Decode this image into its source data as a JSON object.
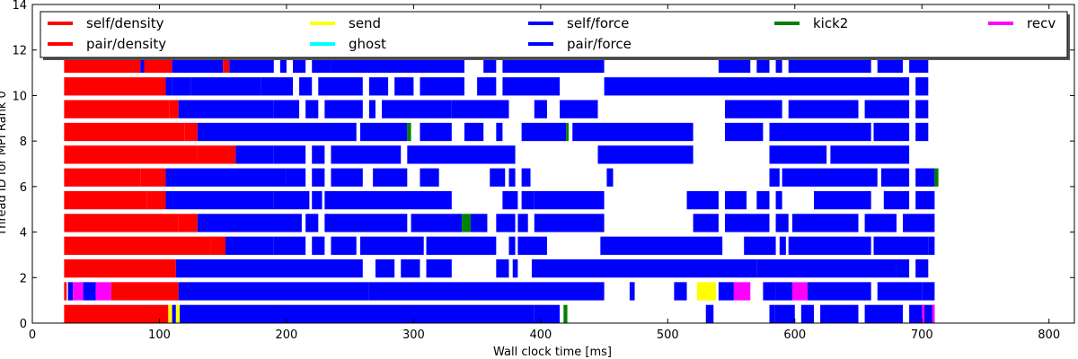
{
  "chart_data": {
    "type": "gantt",
    "xlabel": "Wall clock time [ms]",
    "ylabel": "Thread ID for MPI Rank 0",
    "xlim": [
      0,
      820
    ],
    "ylim": [
      0,
      14
    ],
    "xticks": [
      0,
      100,
      200,
      300,
      400,
      500,
      600,
      700,
      800
    ],
    "yticks": [
      0,
      2,
      4,
      6,
      8,
      10,
      12,
      14
    ],
    "legend_position": "top",
    "legend": [
      {
        "name": "self/density",
        "color": "#ff0000"
      },
      {
        "name": "pair/density",
        "color": "#ff0000"
      },
      {
        "name": "send",
        "color": "#ffff00"
      },
      {
        "name": "ghost",
        "color": "#00ffff"
      },
      {
        "name": "self/force",
        "color": "#0000ff"
      },
      {
        "name": "pair/force",
        "color": "#0000ff"
      },
      {
        "name": "kick2",
        "color": "#008000"
      },
      {
        "name": "recv",
        "color": "#ff00ff"
      }
    ],
    "series_colors": {
      "density": "#ff0000",
      "send": "#ffff00",
      "ghost": "#00ffff",
      "force": "#0000ff",
      "kick2": "#008000",
      "recv": "#ff00ff"
    },
    "threads": [
      {
        "id": 0,
        "tasks": [
          [
            25,
            107,
            "density"
          ],
          [
            107,
            110,
            "send"
          ],
          [
            110,
            113,
            "force"
          ],
          [
            113,
            116,
            "send"
          ],
          [
            116,
            395,
            "force"
          ],
          [
            395,
            415,
            "force"
          ],
          [
            418,
            421,
            "kick2"
          ],
          [
            530,
            536,
            "force"
          ],
          [
            580,
            584,
            "force"
          ],
          [
            584,
            600,
            "force"
          ],
          [
            605,
            615,
            "force"
          ],
          [
            620,
            650,
            "force"
          ],
          [
            655,
            685,
            "force"
          ],
          [
            690,
            710,
            "force"
          ],
          [
            700,
            702,
            "recv"
          ],
          [
            708,
            710,
            "recv"
          ]
        ]
      },
      {
        "id": 1,
        "tasks": [
          [
            25,
            27,
            "density"
          ],
          [
            28,
            32,
            "force"
          ],
          [
            32,
            40,
            "recv"
          ],
          [
            40,
            50,
            "force"
          ],
          [
            50,
            62,
            "recv"
          ],
          [
            62,
            115,
            "density"
          ],
          [
            115,
            265,
            "force"
          ],
          [
            265,
            340,
            "force"
          ],
          [
            340,
            450,
            "force"
          ],
          [
            470,
            474,
            "force"
          ],
          [
            505,
            515,
            "force"
          ],
          [
            523,
            538,
            "send"
          ],
          [
            540,
            552,
            "force"
          ],
          [
            552,
            565,
            "recv"
          ],
          [
            575,
            585,
            "force"
          ],
          [
            585,
            598,
            "force"
          ],
          [
            598,
            610,
            "recv"
          ],
          [
            610,
            660,
            "force"
          ],
          [
            665,
            700,
            "force"
          ],
          [
            700,
            710,
            "force"
          ]
        ]
      },
      {
        "id": 2,
        "tasks": [
          [
            25,
            113,
            "density"
          ],
          [
            113,
            260,
            "force"
          ],
          [
            270,
            285,
            "force"
          ],
          [
            290,
            305,
            "force"
          ],
          [
            310,
            330,
            "force"
          ],
          [
            365,
            375,
            "force"
          ],
          [
            378,
            382,
            "force"
          ],
          [
            393,
            570,
            "force"
          ],
          [
            570,
            680,
            "force"
          ],
          [
            680,
            690,
            "force"
          ],
          [
            695,
            705,
            "force"
          ]
        ]
      },
      {
        "id": 3,
        "tasks": [
          [
            25,
            140,
            "density"
          ],
          [
            140,
            152,
            "density"
          ],
          [
            152,
            190,
            "force"
          ],
          [
            190,
            215,
            "force"
          ],
          [
            220,
            230,
            "force"
          ],
          [
            235,
            255,
            "force"
          ],
          [
            258,
            308,
            "force"
          ],
          [
            310,
            365,
            "force"
          ],
          [
            375,
            380,
            "force"
          ],
          [
            382,
            405,
            "force"
          ],
          [
            447,
            543,
            "force"
          ],
          [
            560,
            585,
            "force"
          ],
          [
            588,
            593,
            "force"
          ],
          [
            595,
            660,
            "force"
          ],
          [
            662,
            705,
            "force"
          ],
          [
            705,
            710,
            "force"
          ]
        ]
      },
      {
        "id": 4,
        "tasks": [
          [
            25,
            115,
            "density"
          ],
          [
            115,
            130,
            "density"
          ],
          [
            130,
            212,
            "force"
          ],
          [
            215,
            225,
            "force"
          ],
          [
            230,
            295,
            "force"
          ],
          [
            298,
            338,
            "force"
          ],
          [
            338,
            345,
            "kick2"
          ],
          [
            345,
            358,
            "force"
          ],
          [
            365,
            380,
            "force"
          ],
          [
            382,
            390,
            "force"
          ],
          [
            395,
            450,
            "force"
          ],
          [
            520,
            540,
            "force"
          ],
          [
            545,
            580,
            "force"
          ],
          [
            585,
            595,
            "force"
          ],
          [
            598,
            650,
            "force"
          ],
          [
            655,
            680,
            "force"
          ],
          [
            685,
            710,
            "force"
          ]
        ]
      },
      {
        "id": 5,
        "tasks": [
          [
            25,
            90,
            "density"
          ],
          [
            90,
            105,
            "density"
          ],
          [
            105,
            190,
            "force"
          ],
          [
            190,
            218,
            "force"
          ],
          [
            220,
            228,
            "force"
          ],
          [
            230,
            330,
            "force"
          ],
          [
            370,
            382,
            "force"
          ],
          [
            385,
            395,
            "force"
          ],
          [
            395,
            450,
            "force"
          ],
          [
            515,
            540,
            "force"
          ],
          [
            545,
            562,
            "force"
          ],
          [
            570,
            580,
            "force"
          ],
          [
            585,
            590,
            "force"
          ],
          [
            615,
            660,
            "force"
          ],
          [
            670,
            690,
            "force"
          ],
          [
            695,
            710,
            "force"
          ]
        ]
      },
      {
        "id": 6,
        "tasks": [
          [
            25,
            85,
            "density"
          ],
          [
            85,
            105,
            "density"
          ],
          [
            105,
            200,
            "force"
          ],
          [
            200,
            215,
            "force"
          ],
          [
            220,
            230,
            "force"
          ],
          [
            235,
            260,
            "force"
          ],
          [
            268,
            295,
            "force"
          ],
          [
            305,
            320,
            "force"
          ],
          [
            360,
            372,
            "force"
          ],
          [
            375,
            380,
            "force"
          ],
          [
            385,
            392,
            "force"
          ],
          [
            452,
            457,
            "force"
          ],
          [
            580,
            588,
            "force"
          ],
          [
            590,
            665,
            "force"
          ],
          [
            668,
            690,
            "force"
          ],
          [
            695,
            710,
            "force"
          ],
          [
            710,
            713,
            "kick2"
          ]
        ]
      },
      {
        "id": 7,
        "tasks": [
          [
            25,
            130,
            "density"
          ],
          [
            130,
            160,
            "density"
          ],
          [
            160,
            190,
            "force"
          ],
          [
            190,
            215,
            "force"
          ],
          [
            220,
            230,
            "force"
          ],
          [
            235,
            290,
            "force"
          ],
          [
            295,
            380,
            "force"
          ],
          [
            445,
            520,
            "force"
          ],
          [
            580,
            625,
            "force"
          ],
          [
            628,
            690,
            "force"
          ]
        ]
      },
      {
        "id": 8,
        "tasks": [
          [
            25,
            120,
            "density"
          ],
          [
            120,
            130,
            "density"
          ],
          [
            130,
            255,
            "force"
          ],
          [
            258,
            295,
            "force"
          ],
          [
            295,
            298,
            "kick2"
          ],
          [
            305,
            330,
            "force"
          ],
          [
            340,
            355,
            "force"
          ],
          [
            365,
            370,
            "force"
          ],
          [
            385,
            420,
            "force"
          ],
          [
            420,
            422,
            "kick2"
          ],
          [
            425,
            520,
            "force"
          ],
          [
            545,
            575,
            "force"
          ],
          [
            580,
            660,
            "force"
          ],
          [
            662,
            690,
            "force"
          ],
          [
            695,
            705,
            "force"
          ]
        ]
      },
      {
        "id": 9,
        "tasks": [
          [
            25,
            108,
            "density"
          ],
          [
            108,
            115,
            "density"
          ],
          [
            115,
            190,
            "force"
          ],
          [
            190,
            210,
            "force"
          ],
          [
            215,
            225,
            "force"
          ],
          [
            230,
            260,
            "force"
          ],
          [
            265,
            270,
            "force"
          ],
          [
            275,
            330,
            "force"
          ],
          [
            330,
            375,
            "force"
          ],
          [
            395,
            405,
            "force"
          ],
          [
            415,
            445,
            "force"
          ],
          [
            545,
            590,
            "force"
          ],
          [
            595,
            650,
            "force"
          ],
          [
            655,
            690,
            "force"
          ],
          [
            695,
            705,
            "force"
          ]
        ]
      },
      {
        "id": 10,
        "tasks": [
          [
            25,
            105,
            "density"
          ],
          [
            105,
            110,
            "force"
          ],
          [
            110,
            125,
            "force"
          ],
          [
            125,
            180,
            "force"
          ],
          [
            180,
            205,
            "force"
          ],
          [
            210,
            220,
            "force"
          ],
          [
            225,
            260,
            "force"
          ],
          [
            265,
            280,
            "force"
          ],
          [
            285,
            300,
            "force"
          ],
          [
            305,
            340,
            "force"
          ],
          [
            350,
            365,
            "force"
          ],
          [
            370,
            415,
            "force"
          ],
          [
            450,
            580,
            "force"
          ],
          [
            580,
            690,
            "force"
          ],
          [
            695,
            705,
            "force"
          ]
        ]
      },
      {
        "id": 11,
        "tasks": [
          [
            25,
            85,
            "density"
          ],
          [
            85,
            88,
            "force"
          ],
          [
            88,
            110,
            "density"
          ],
          [
            110,
            150,
            "force"
          ],
          [
            150,
            155,
            "density"
          ],
          [
            155,
            190,
            "force"
          ],
          [
            195,
            200,
            "force"
          ],
          [
            205,
            215,
            "force"
          ],
          [
            220,
            235,
            "force"
          ],
          [
            235,
            340,
            "force"
          ],
          [
            355,
            365,
            "force"
          ],
          [
            370,
            450,
            "force"
          ],
          [
            540,
            565,
            "force"
          ],
          [
            570,
            580,
            "force"
          ],
          [
            585,
            590,
            "force"
          ],
          [
            595,
            660,
            "force"
          ],
          [
            665,
            685,
            "force"
          ],
          [
            690,
            705,
            "force"
          ]
        ]
      }
    ]
  }
}
